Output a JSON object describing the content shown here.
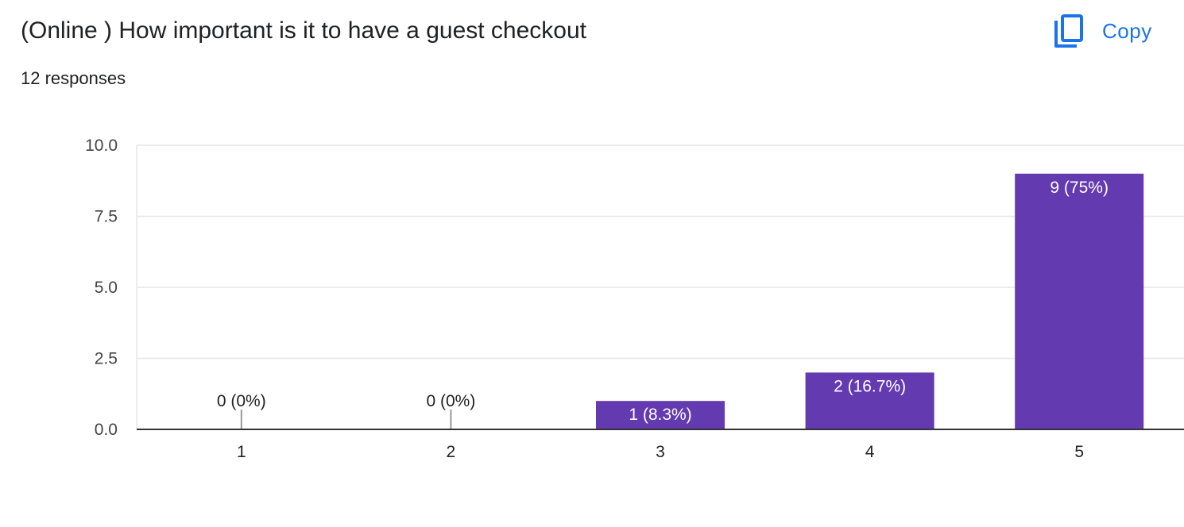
{
  "question": {
    "title": "(Online ) How important is it to have a guest checkout",
    "responses": "12 responses"
  },
  "toolbar": {
    "copy_label": "Copy",
    "copy_icon": "copy-icon"
  },
  "colors": {
    "bar": "#643ab0",
    "accent": "#1a73e8",
    "grid": "#e6e6e6",
    "axis": "#333333"
  },
  "chart_data": {
    "type": "bar",
    "categories": [
      "1",
      "2",
      "3",
      "4",
      "5"
    ],
    "values": [
      0,
      0,
      1,
      2,
      9
    ],
    "data_labels": [
      "0 (0%)",
      "0 (0%)",
      "1 (8.3%)",
      "2 (16.7%)",
      "9 (75%)"
    ],
    "y_ticks": [
      "0.0",
      "2.5",
      "5.0",
      "7.5",
      "10.0"
    ],
    "ylim": [
      0,
      10
    ],
    "grid": true,
    "xlabel": "",
    "ylabel": ""
  }
}
